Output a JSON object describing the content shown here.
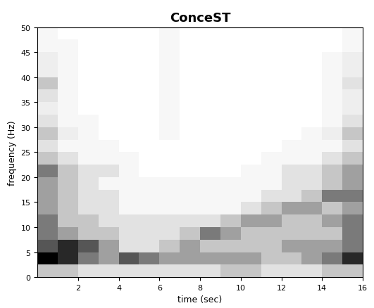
{
  "chart_data": {
    "type": "heatmap",
    "title": "ConceST",
    "x_label": "time (sec)",
    "y_label": "frequency (Hz)",
    "color": "Greys",
    "x": [
      0,
      1,
      2,
      3,
      4,
      5,
      6,
      7,
      8,
      9,
      10,
      11,
      12,
      13,
      14,
      15,
      16
    ],
    "y": [
      0,
      2.5,
      5,
      7.5,
      10,
      12.5,
      15,
      17.5,
      20,
      22.5,
      25,
      27.5,
      30,
      32.5,
      35,
      37.5,
      40,
      42.5,
      45,
      47.5,
      50
    ],
    "cells": [
      [
        0.3,
        0.3,
        0.2,
        0.2,
        0.2,
        0.2,
        0.2,
        0.2,
        0.2,
        0.3,
        0.3,
        0.2,
        0.2,
        0.2,
        0.3,
        0.3
      ],
      [
        0.8,
        0.7,
        0.5,
        0.4,
        0.6,
        0.5,
        0.4,
        0.4,
        0.4,
        0.4,
        0.4,
        0.3,
        0.3,
        0.4,
        0.5,
        0.7
      ],
      [
        0.6,
        0.7,
        0.6,
        0.4,
        0.2,
        0.2,
        0.3,
        0.4,
        0.3,
        0.3,
        0.3,
        0.3,
        0.4,
        0.4,
        0.4,
        0.5
      ],
      [
        0.5,
        0.4,
        0.3,
        0.3,
        0.2,
        0.2,
        0.2,
        0.3,
        0.5,
        0.4,
        0.3,
        0.3,
        0.3,
        0.3,
        0.3,
        0.5
      ],
      [
        0.5,
        0.3,
        0.3,
        0.2,
        0.2,
        0.2,
        0.2,
        0.2,
        0.2,
        0.3,
        0.4,
        0.4,
        0.3,
        0.3,
        0.4,
        0.5
      ],
      [
        0.4,
        0.3,
        0.2,
        0.2,
        0.1,
        0.1,
        0.1,
        0.1,
        0.1,
        0.1,
        0.2,
        0.3,
        0.4,
        0.4,
        0.3,
        0.4
      ],
      [
        0.4,
        0.3,
        0.2,
        0.2,
        0.1,
        0.1,
        0.1,
        0.1,
        0.1,
        0.1,
        0.1,
        0.2,
        0.2,
        0.3,
        0.5,
        0.5
      ],
      [
        0.4,
        0.3,
        0.2,
        0.1,
        0.1,
        0.1,
        0.1,
        0.1,
        0.1,
        0.1,
        0.1,
        0.1,
        0.2,
        0.2,
        0.3,
        0.4
      ],
      [
        0.5,
        0.3,
        0.2,
        0.2,
        0.1,
        0.05,
        0.05,
        0.05,
        0.05,
        0.05,
        0.1,
        0.1,
        0.2,
        0.2,
        0.3,
        0.4
      ],
      [
        0.3,
        0.2,
        0.1,
        0.1,
        0.1,
        0.05,
        0.05,
        0.05,
        0.05,
        0.05,
        0.05,
        0.1,
        0.1,
        0.1,
        0.2,
        0.3
      ],
      [
        0.2,
        0.1,
        0.1,
        0.1,
        0.05,
        0.05,
        0.05,
        0.05,
        0.05,
        0.05,
        0.05,
        0.05,
        0.1,
        0.1,
        0.1,
        0.2
      ],
      [
        0.3,
        0.15,
        0.1,
        0.05,
        0.05,
        0.05,
        0.1,
        0.05,
        0.05,
        0.05,
        0.05,
        0.05,
        0.05,
        0.1,
        0.15,
        0.3
      ],
      [
        0.2,
        0.1,
        0.1,
        0.05,
        0.05,
        0.05,
        0.1,
        0.05,
        0.05,
        0.05,
        0.05,
        0.05,
        0.05,
        0.05,
        0.1,
        0.2
      ],
      [
        0.15,
        0.1,
        0.05,
        0.05,
        0.05,
        0.05,
        0.1,
        0.05,
        0.05,
        0.05,
        0.05,
        0.05,
        0.05,
        0.05,
        0.1,
        0.15
      ],
      [
        0.2,
        0.1,
        0.05,
        0.05,
        0.05,
        0.05,
        0.1,
        0.05,
        0.05,
        0.05,
        0.05,
        0.05,
        0.05,
        0.05,
        0.1,
        0.15
      ],
      [
        0.3,
        0.1,
        0.05,
        0.05,
        0.05,
        0.05,
        0.1,
        0.05,
        0.05,
        0.05,
        0.05,
        0.05,
        0.05,
        0.05,
        0.1,
        0.2
      ],
      [
        0.15,
        0.1,
        0.05,
        0.05,
        0.05,
        0.05,
        0.1,
        0.05,
        0.05,
        0.05,
        0.05,
        0.05,
        0.05,
        0.05,
        0.1,
        0.15
      ],
      [
        0.15,
        0.1,
        0.05,
        0.05,
        0.05,
        0.05,
        0.1,
        0.05,
        0.05,
        0.05,
        0.05,
        0.05,
        0.05,
        0.05,
        0.1,
        0.15
      ],
      [
        0.1,
        0.1,
        0.05,
        0.05,
        0.05,
        0.05,
        0.1,
        0.05,
        0.05,
        0.05,
        0.05,
        0.05,
        0.05,
        0.05,
        0.05,
        0.1
      ],
      [
        0.1,
        0.05,
        0.05,
        0.05,
        0.05,
        0.05,
        0.1,
        0.05,
        0.05,
        0.05,
        0.05,
        0.05,
        0.05,
        0.05,
        0.05,
        0.1
      ]
    ],
    "xlim": [
      0,
      16
    ],
    "ylim": [
      0,
      50
    ],
    "xticks": [
      2,
      4,
      6,
      8,
      10,
      12,
      14,
      16
    ],
    "yticks": [
      0,
      5,
      10,
      15,
      20,
      25,
      30,
      35,
      40,
      45,
      50
    ]
  }
}
